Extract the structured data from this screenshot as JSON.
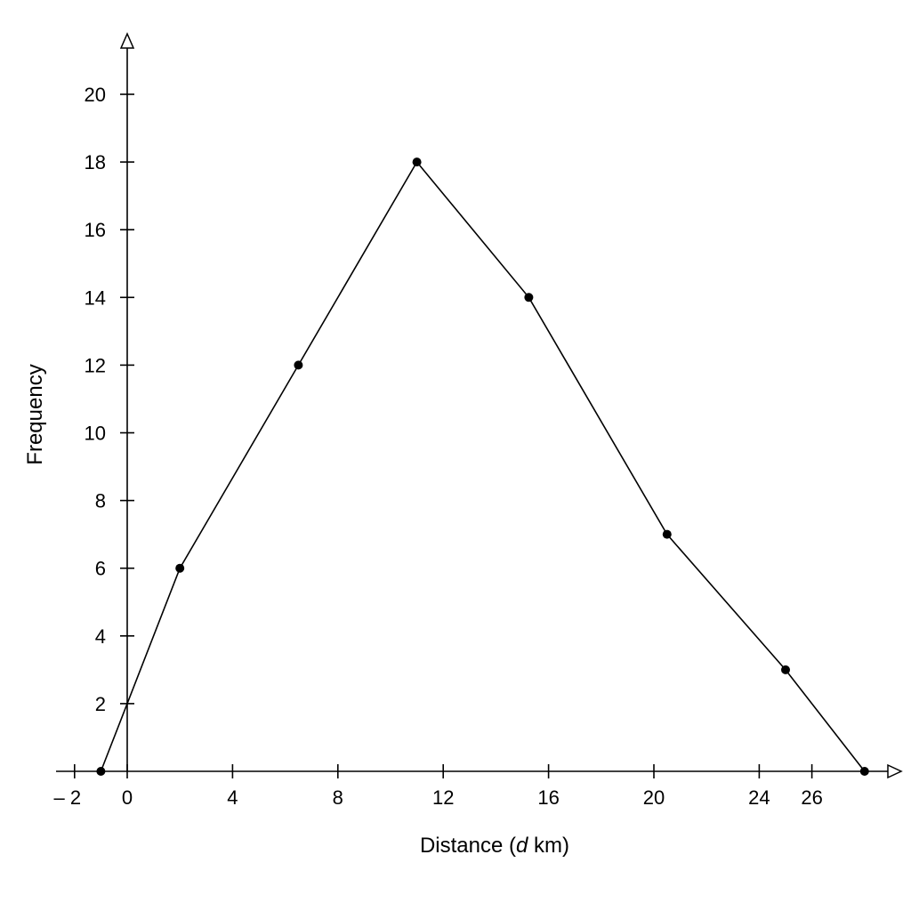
{
  "chart_data": {
    "type": "line",
    "title": "",
    "xlabel": "Distance (d km)",
    "xlabel_parts": {
      "before": "Distance (",
      "italic": "d",
      "after": " km)"
    },
    "ylabel": "Frequency",
    "xlim": [
      -2,
      26
    ],
    "ylim": [
      0,
      20
    ],
    "x_ticks": [
      -2,
      0,
      4,
      8,
      12,
      16,
      20,
      24,
      26
    ],
    "x_tick_labels": [
      "– 2",
      "0",
      "4",
      "8",
      "12",
      "16",
      "20",
      "24",
      "26"
    ],
    "y_ticks": [
      2,
      4,
      6,
      8,
      10,
      12,
      14,
      16,
      18,
      20
    ],
    "y_tick_labels": [
      "2",
      "4",
      "6",
      "8",
      "10",
      "12",
      "14",
      "16",
      "18",
      "20"
    ],
    "grid": false,
    "series": [
      {
        "points": [
          {
            "x": -1,
            "y": 0
          },
          {
            "x": 2,
            "y": 6
          },
          {
            "x": 6.5,
            "y": 12
          },
          {
            "x": 11,
            "y": 18
          },
          {
            "x": 15.25,
            "y": 14
          },
          {
            "x": 20.5,
            "y": 7
          },
          {
            "x": 25,
            "y": 3
          },
          {
            "x": 28,
            "y": 0
          }
        ],
        "color": "#000000"
      }
    ]
  }
}
